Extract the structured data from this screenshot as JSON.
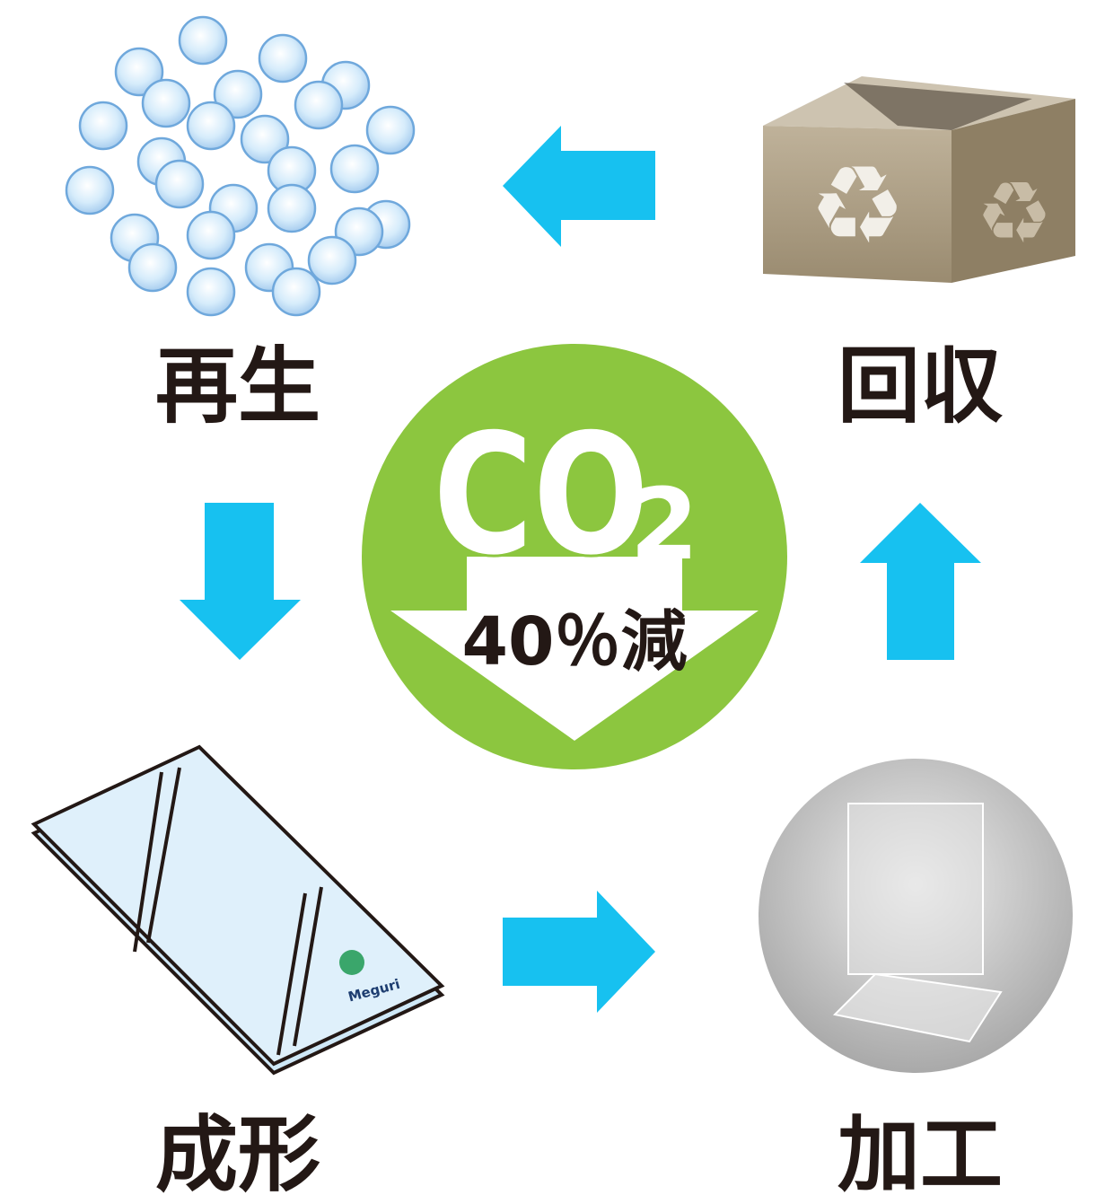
{
  "nodes": [
    {
      "label": "再生"
    },
    {
      "label": "回収"
    },
    {
      "label": "成形"
    },
    {
      "label": "加工"
    }
  ],
  "center": {
    "molecule": "CO",
    "subscript": "2",
    "reduction": "40％減"
  },
  "logo": "Meguri"
}
